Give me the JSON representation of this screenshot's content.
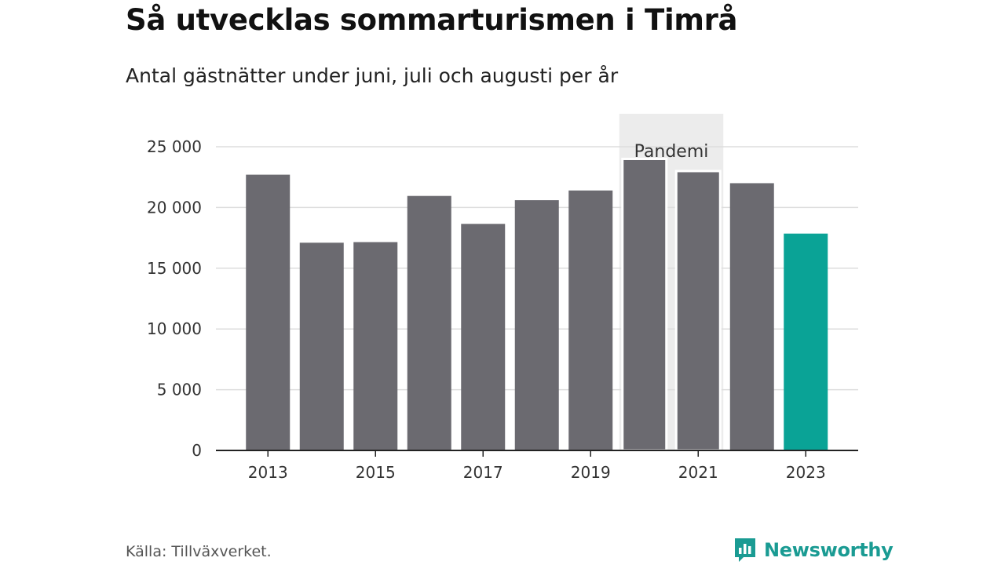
{
  "header": {
    "title": "Så utvecklas sommarturismen i Timrå",
    "subtitle": "Antal gästnätter under juni, juli och augusti per år"
  },
  "footer": {
    "source": "Källa: Tillväxverket.",
    "brand": "Newsworthy"
  },
  "colors": {
    "bar": "#6b6a70",
    "highlight": "#0aa396",
    "annotation_band": "#ececec",
    "gridline": "#dddddd",
    "axis": "#222222",
    "brand": "#1a9b93"
  },
  "chart_data": {
    "type": "bar",
    "title": "Så utvecklas sommarturismen i Timrå",
    "subtitle": "Antal gästnätter under juni, juli och augusti per år",
    "categories": [
      2013,
      2014,
      2015,
      2016,
      2017,
      2018,
      2019,
      2020,
      2021,
      2022,
      2023
    ],
    "values": [
      22700,
      17100,
      17150,
      20950,
      18650,
      20600,
      21400,
      24000,
      23000,
      22000,
      17850
    ],
    "highlight_category": 2023,
    "ylim": [
      0,
      25000
    ],
    "yticks": [
      0,
      5000,
      10000,
      15000,
      20000,
      25000
    ],
    "ytick_labels": [
      "0",
      "5 000",
      "10 000",
      "15 000",
      "20 000",
      "25 000"
    ],
    "xticks": [
      2013,
      2015,
      2017,
      2019,
      2021,
      2023
    ],
    "xtick_labels": [
      "2013",
      "2015",
      "2017",
      "2019",
      "2021",
      "2023"
    ],
    "grid": true,
    "annotation": {
      "label": "Pandemi",
      "from_category": 2020,
      "to_category": 2021
    }
  }
}
